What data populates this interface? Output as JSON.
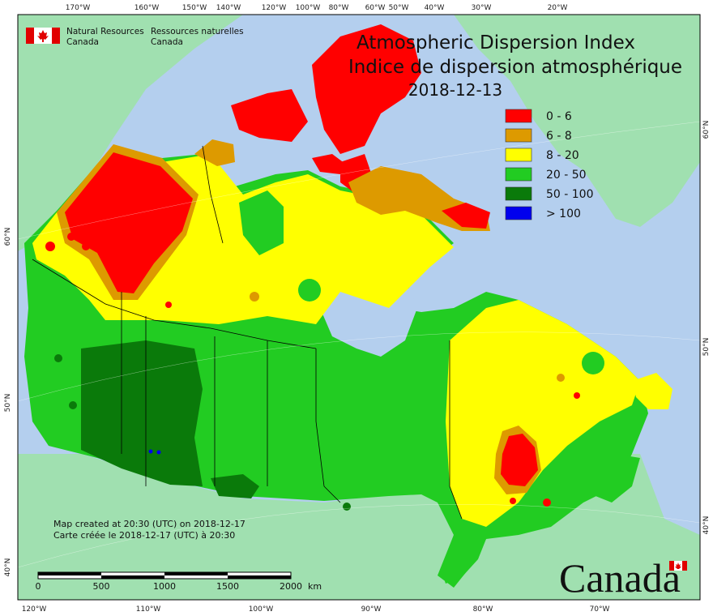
{
  "title_en": "Atmospheric Dispersion Index",
  "title_fr": "Indice de dispersion atmosphérique",
  "date": "2018-12-13",
  "agency_en_1": "Natural Resources",
  "agency_en_2": "Canada",
  "agency_fr_1": "Ressources naturelles",
  "agency_fr_2": "Canada",
  "wordmark": "Canada",
  "note_en": "Map created at 20:30 (UTC) on 2018-12-17",
  "note_fr": "Carte créée le 2018-12-17 (UTC) à 20:30",
  "legend": [
    {
      "label": "0 - 6",
      "color": "#ff0000"
    },
    {
      "label": "6 - 8",
      "color": "#dd9a00"
    },
    {
      "label": "8 - 20",
      "color": "#ffff00"
    },
    {
      "label": "20 - 50",
      "color": "#22cc22"
    },
    {
      "label": "50 - 100",
      "color": "#0a7a0a"
    },
    {
      "label": "> 100",
      "color": "#0000ee"
    }
  ],
  "scale": {
    "labels": [
      "0",
      "500",
      "1000",
      "1500",
      "2000"
    ],
    "unit": "km"
  },
  "top_ticks": [
    "170°W",
    "160°W",
    "150°W",
    "140°W",
    "120°W",
    "100°W",
    "80°W",
    "60°W",
    "50°W",
    "40°W",
    "30°W",
    "20°W"
  ],
  "bottom_ticks": [
    "120°W",
    "110°W",
    "100°W",
    "90°W",
    "80°W",
    "70°W"
  ],
  "left_ticks": [
    "60°N",
    "50°N",
    "40°N"
  ],
  "right_ticks": [
    "60°N",
    "50°N",
    "40°N"
  ],
  "colors": {
    "ocean": "#b4cfee",
    "land": "#a0e0b0",
    "border": "#000000"
  }
}
